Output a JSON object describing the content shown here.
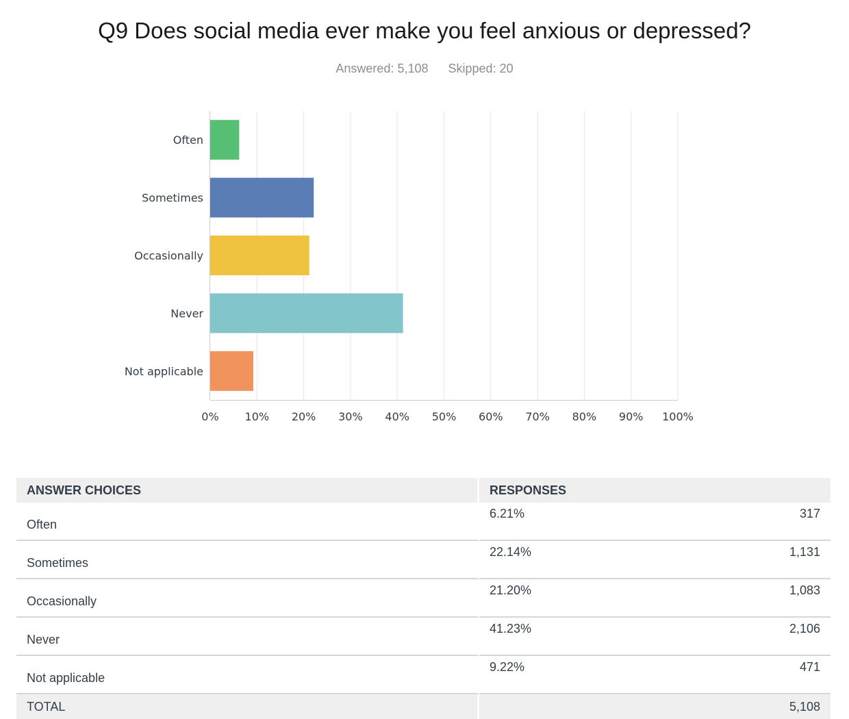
{
  "question": {
    "title": "Q9 Does social media ever make you feel anxious or depressed?",
    "answered": "Answered: 5,108",
    "skipped": "Skipped: 20"
  },
  "chart_data": {
    "type": "bar",
    "orientation": "horizontal",
    "categories": [
      "Often",
      "Sometimes",
      "Occasionally",
      "Never",
      "Not applicable"
    ],
    "values": [
      6.21,
      22.14,
      21.2,
      41.23,
      9.22
    ],
    "colors": [
      "#57bf73",
      "#5b7db5",
      "#efc23f",
      "#82c5ca",
      "#f0935c"
    ],
    "xlim": [
      0,
      100
    ],
    "xticks": [
      "0%",
      "10%",
      "20%",
      "30%",
      "40%",
      "50%",
      "60%",
      "70%",
      "80%",
      "90%",
      "100%"
    ],
    "grid": true,
    "title": "Q9 Does social media ever make you feel anxious or depressed?",
    "xlabel": "",
    "ylabel": ""
  },
  "table": {
    "headers": {
      "choices": "ANSWER CHOICES",
      "responses": "RESPONSES"
    },
    "rows": [
      {
        "choice": "Often",
        "percent": "6.21%",
        "count": "317"
      },
      {
        "choice": "Sometimes",
        "percent": "22.14%",
        "count": "1,131"
      },
      {
        "choice": "Occasionally",
        "percent": "21.20%",
        "count": "1,083"
      },
      {
        "choice": "Never",
        "percent": "41.23%",
        "count": "2,106"
      },
      {
        "choice": "Not applicable",
        "percent": "9.22%",
        "count": "471"
      }
    ],
    "total": {
      "label": "TOTAL",
      "count": "5,108"
    }
  }
}
